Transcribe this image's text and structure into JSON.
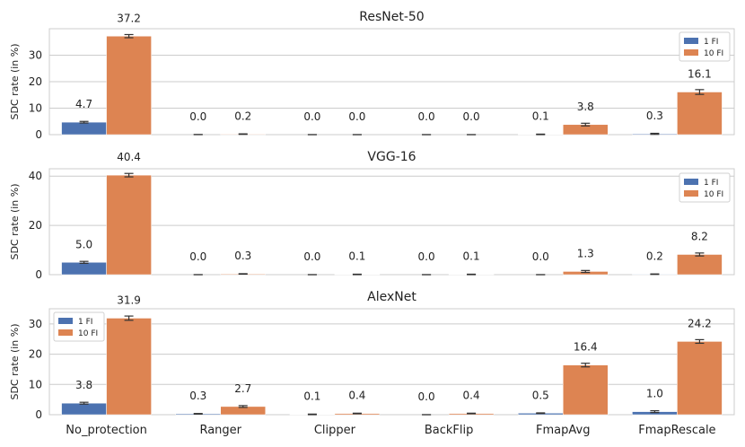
{
  "chart_data": [
    {
      "type": "bar",
      "title": "ResNet-50",
      "xlabel": "",
      "ylabel": "SDC rate (in %)",
      "ylim": [
        0,
        40
      ],
      "yticks": [
        0,
        10,
        20,
        30
      ],
      "grid": true,
      "legend_position": "top-right",
      "categories": [
        "No_protection",
        "Ranger",
        "Clipper",
        "BackFlip",
        "FmapAvg",
        "FmapRescale"
      ],
      "show_category_labels": false,
      "series": [
        {
          "name": "1 FI",
          "values": [
            4.7,
            0.0,
            0.0,
            0.0,
            0.1,
            0.3
          ],
          "labels": [
            "4.7",
            "0.0",
            "0.0",
            "0.0",
            "0.1",
            "0.3"
          ],
          "errors": [
            0.3,
            0.05,
            0.0,
            0.0,
            0.1,
            0.2
          ]
        },
        {
          "name": "10 FI",
          "values": [
            37.2,
            0.2,
            0.0,
            0.0,
            3.8,
            16.1
          ],
          "labels": [
            "37.2",
            "0.2",
            "0.0",
            "0.0",
            "3.8",
            "16.1"
          ],
          "errors": [
            0.6,
            0.1,
            0.0,
            0.0,
            0.5,
            0.9
          ]
        }
      ]
    },
    {
      "type": "bar",
      "title": "VGG-16",
      "xlabel": "",
      "ylabel": "SDC rate (in %)",
      "ylim": [
        0,
        43
      ],
      "yticks": [
        0,
        20,
        40
      ],
      "grid": true,
      "legend_position": "top-right",
      "categories": [
        "No_protection",
        "Ranger",
        "Clipper",
        "BackFlip",
        "FmapAvg",
        "FmapRescale"
      ],
      "show_category_labels": false,
      "series": [
        {
          "name": "1 FI",
          "values": [
            5.0,
            0.0,
            0.0,
            0.0,
            0.0,
            0.2
          ],
          "labels": [
            "5.0",
            "0.0",
            "0.0",
            "0.0",
            "0.0",
            "0.2"
          ],
          "errors": [
            0.4,
            0.0,
            0.0,
            0.0,
            0.0,
            0.1
          ]
        },
        {
          "name": "10 FI",
          "values": [
            40.4,
            0.3,
            0.1,
            0.1,
            1.3,
            8.2
          ],
          "labels": [
            "40.4",
            "0.3",
            "0.1",
            "0.1",
            "1.3",
            "8.2"
          ],
          "errors": [
            0.7,
            0.1,
            0.1,
            0.1,
            0.4,
            0.6
          ]
        }
      ]
    },
    {
      "type": "bar",
      "title": "AlexNet",
      "xlabel": "",
      "ylabel": "SDC rate (in %)",
      "ylim": [
        0,
        35
      ],
      "yticks": [
        0,
        10,
        20,
        30
      ],
      "grid": true,
      "legend_position": "top-left",
      "categories": [
        "No_protection",
        "Ranger",
        "Clipper",
        "BackFlip",
        "FmapAvg",
        "FmapRescale"
      ],
      "show_category_labels": true,
      "series": [
        {
          "name": "1 FI",
          "values": [
            3.8,
            0.3,
            0.1,
            0.0,
            0.5,
            1.0
          ],
          "labels": [
            "3.8",
            "0.3",
            "0.1",
            "0.0",
            "0.5",
            "1.0"
          ],
          "errors": [
            0.3,
            0.1,
            0.1,
            0.0,
            0.1,
            0.3
          ]
        },
        {
          "name": "10 FI",
          "values": [
            31.9,
            2.7,
            0.4,
            0.4,
            16.4,
            24.2
          ],
          "labels": [
            "31.9",
            "2.7",
            "0.4",
            "0.4",
            "16.4",
            "24.2"
          ],
          "errors": [
            0.7,
            0.3,
            0.1,
            0.1,
            0.6,
            0.6
          ]
        }
      ]
    }
  ],
  "colors": {
    "series": [
      "#4c72b0",
      "#dd8452"
    ],
    "grid": "#cccccc",
    "axis": "#cccccc",
    "errorbar": "#333333"
  }
}
